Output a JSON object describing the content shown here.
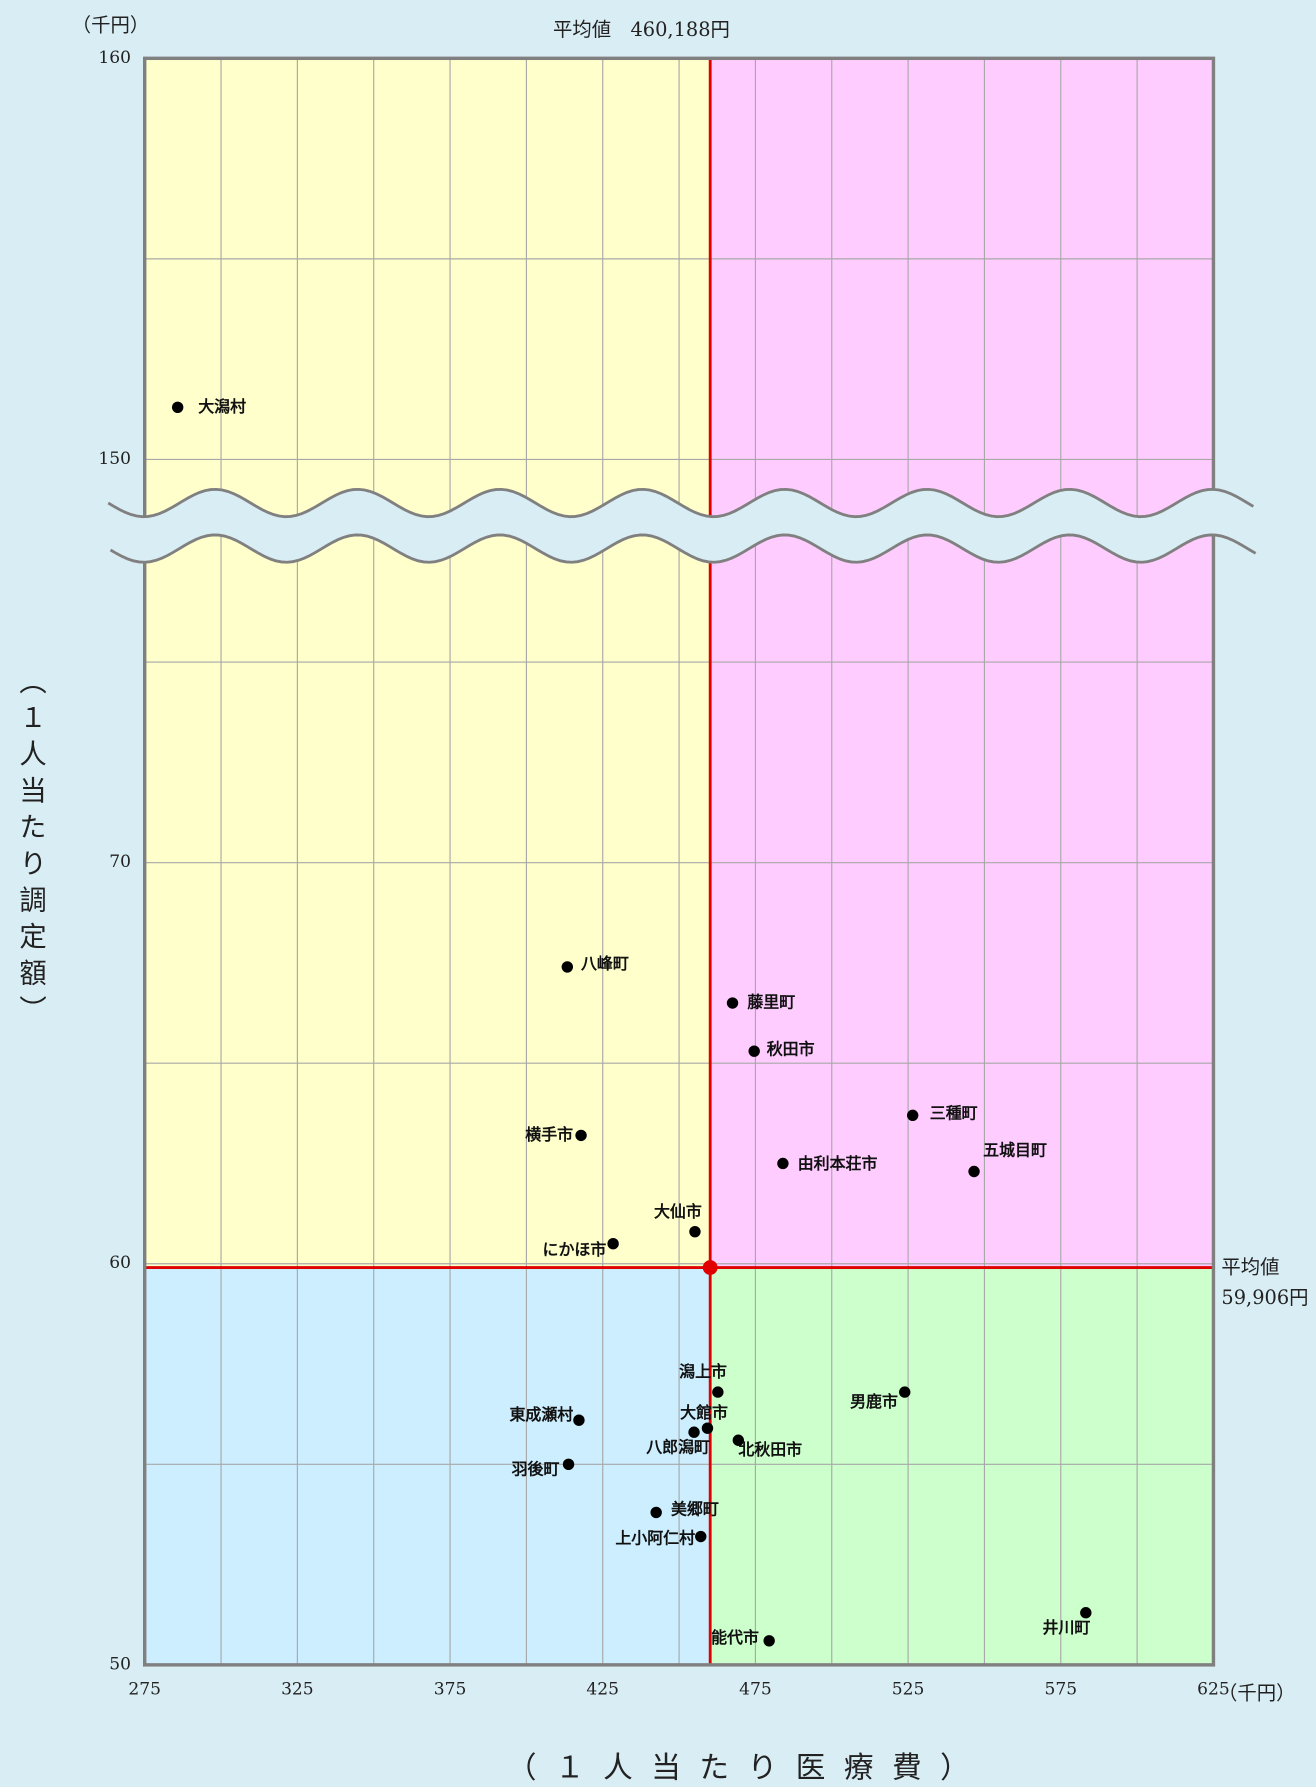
{
  "chart_data": {
    "type": "scatter",
    "y_unit_label": "（千円）",
    "x_unit_label": "（千円）",
    "y_label": "（１人当たり調定額）",
    "x_label": "（ １ 人 当 た り 医 療 費 ）",
    "xlim": [
      275,
      625
    ],
    "xticks": [
      275,
      325,
      375,
      425,
      475,
      525,
      575,
      625
    ],
    "xgrid": [
      300,
      350,
      400,
      450,
      500,
      550,
      600
    ],
    "ylim_segments": [
      [
        50,
        78
      ],
      [
        148.8,
        160
      ]
    ],
    "yticks": [
      50,
      60,
      70,
      150,
      160
    ],
    "ygrid": [
      55,
      65,
      75,
      155
    ],
    "grid": true,
    "mean_x": {
      "value": 460.188,
      "label": "平均値　460,188円"
    },
    "mean_y": {
      "value": 59.906,
      "label": [
        "平均値",
        "59,906円"
      ]
    },
    "colors": {
      "upper_left": "#ffffcc",
      "upper_right": "#ffccff",
      "lower_left": "#cceeff",
      "lower_right": "#ccffcc",
      "mean": "#e00000",
      "point": "#000000"
    },
    "points": [
      {
        "label": "大潟村",
        "x": 285.8,
        "y": 151.3
      },
      {
        "label": "八峰町",
        "x": 413.4,
        "y": 67.4
      },
      {
        "label": "藤里町",
        "x": 467.5,
        "y": 66.5
      },
      {
        "label": "秋田市",
        "x": 474.6,
        "y": 65.3
      },
      {
        "label": "三種町",
        "x": 526.5,
        "y": 63.7
      },
      {
        "label": "五城目町",
        "x": 546.6,
        "y": 62.3
      },
      {
        "label": "由利本荘市",
        "x": 484.0,
        "y": 62.5
      },
      {
        "label": "横手市",
        "x": 417.9,
        "y": 63.2
      },
      {
        "label": "大仙市",
        "x": 455.2,
        "y": 60.8
      },
      {
        "label": "にかほ市",
        "x": 428.4,
        "y": 60.5
      },
      {
        "label": "潟上市",
        "x": 462.7,
        "y": 56.8
      },
      {
        "label": "大館市",
        "x": 459.3,
        "y": 55.9
      },
      {
        "label": "八郎潟町",
        "x": 454.9,
        "y": 55.8
      },
      {
        "label": "北秋田市",
        "x": 469.4,
        "y": 55.6
      },
      {
        "label": "東成瀬村",
        "x": 417.2,
        "y": 56.1
      },
      {
        "label": "羽後町",
        "x": 413.8,
        "y": 55.0
      },
      {
        "label": "男鹿市",
        "x": 523.9,
        "y": 56.8
      },
      {
        "label": "美郷町",
        "x": 442.5,
        "y": 53.8
      },
      {
        "label": "上小阿仁村",
        "x": 457.1,
        "y": 53.2
      },
      {
        "label": "能代市",
        "x": 479.5,
        "y": 50.6
      },
      {
        "label": "井川町",
        "x": 583.2,
        "y": 51.3
      }
    ]
  }
}
